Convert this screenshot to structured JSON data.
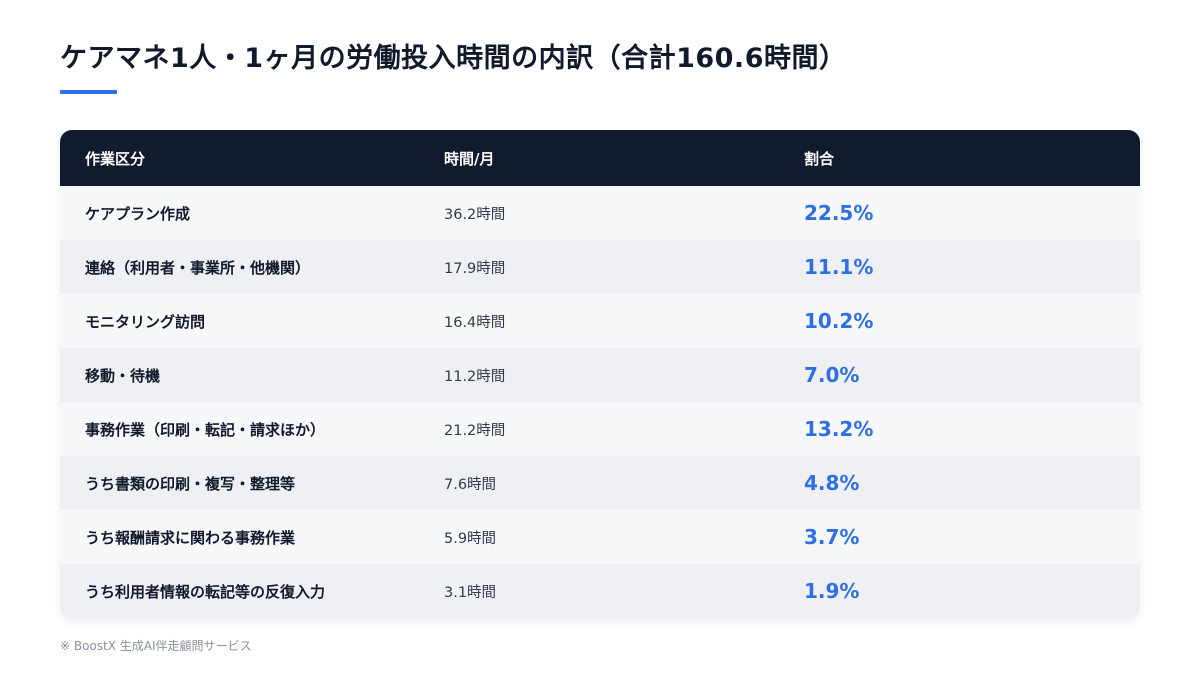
{
  "title": "ケアマネ1人・1ヶ月の労働投入時間の内訳（合計160.6時間）",
  "colors": {
    "accent": "#2f6fe4",
    "header_bg": "#111a2e"
  },
  "table": {
    "headers": [
      "作業区分",
      "時間/月",
      "割合"
    ],
    "rows": [
      {
        "category": "ケアプラン作成",
        "hours": "36.2時間",
        "share": "22.5%"
      },
      {
        "category": "連絡（利用者・事業所・他機関）",
        "hours": "17.9時間",
        "share": "11.1%"
      },
      {
        "category": "モニタリング訪問",
        "hours": "16.4時間",
        "share": "10.2%"
      },
      {
        "category": "移動・待機",
        "hours": "11.2時間",
        "share": "7.0%"
      },
      {
        "category": "事務作業（印刷・転記・請求ほか）",
        "hours": "21.2時間",
        "share": "13.2%"
      },
      {
        "category": "うち書類の印刷・複写・整理等",
        "hours": "7.6時間",
        "share": "4.8%"
      },
      {
        "category": "うち報酬請求に関わる事務作業",
        "hours": "5.9時間",
        "share": "3.7%"
      },
      {
        "category": "うち利用者情報の転記等の反復入力",
        "hours": "3.1時間",
        "share": "1.9%"
      }
    ]
  },
  "footnote": "※ BoostX 生成AI伴走顧問サービス"
}
